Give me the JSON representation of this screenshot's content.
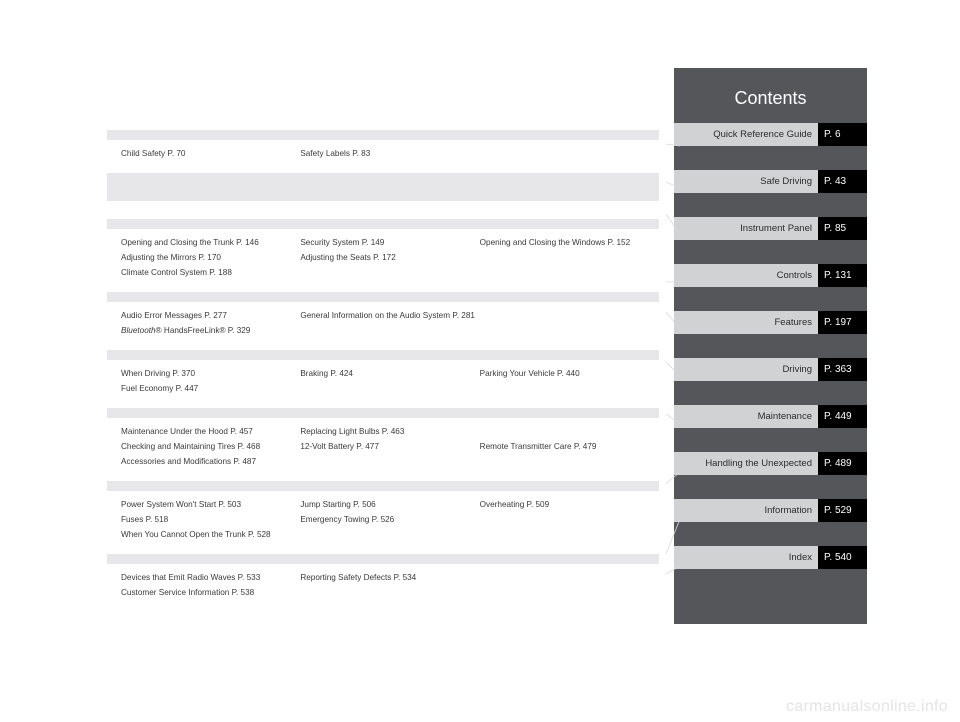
{
  "title": "Contents",
  "watermark": "carmanualsonline.info",
  "tabs": [
    {
      "label": "Quick Reference Guide",
      "page": "P. 6"
    },
    {
      "label": "Safe Driving",
      "page": "P. 43"
    },
    {
      "label": "Instrument Panel",
      "page": "P. 85"
    },
    {
      "label": "Controls",
      "page": "P. 131"
    },
    {
      "label": "Features",
      "page": "P. 197"
    },
    {
      "label": "Driving",
      "page": "P. 363"
    },
    {
      "label": "Maintenance",
      "page": "P. 449"
    },
    {
      "label": "Handling the Unexpected",
      "page": "P. 489"
    },
    {
      "label": "Information",
      "page": "P. 529"
    },
    {
      "label": "Index",
      "page": "P. 540"
    }
  ],
  "sections": [
    {
      "rows": [
        {
          "c1": "Child Safety P. 70",
          "c2": "Safety Labels P. 83",
          "c3": ""
        }
      ]
    },
    {
      "rows": [
        {
          "c1": "Opening and Closing the Trunk P. 146",
          "c2": "Security System P. 149",
          "c3": "Opening and Closing the Windows P. 152"
        },
        {
          "c1": "Adjusting the Mirrors P. 170",
          "c2": "Adjusting the Seats P. 172",
          "c3": ""
        },
        {
          "c1": "Climate Control System P. 188",
          "c2": "",
          "c3": ""
        }
      ]
    },
    {
      "rows": [
        {
          "c1": "Audio Error Messages P. 277",
          "c2": "General Information on the Audio System P. 281",
          "c3": ""
        },
        {
          "c1_html": "<span class=\"it\">Bluetooth</span>® HandsFreeLink® P. 329",
          "c2": "",
          "c3": ""
        }
      ]
    },
    {
      "rows": [
        {
          "c1": "When Driving P. 370",
          "c2": "Braking P. 424",
          "c3": "Parking Your Vehicle P. 440"
        },
        {
          "c1": "Fuel Economy P. 447",
          "c2": "",
          "c3": ""
        }
      ]
    },
    {
      "rows": [
        {
          "c1": "Maintenance Under the Hood P. 457",
          "c2": "Replacing Light Bulbs P. 463",
          "c3": ""
        },
        {
          "c1": "Checking and Maintaining Tires P. 468",
          "c2": "12-Volt Battery P. 477",
          "c3": "Remote Transmitter Care P. 479"
        },
        {
          "c1": "Accessories and Modifications P. 487",
          "c2": "",
          "c3": ""
        }
      ]
    },
    {
      "rows": [
        {
          "c1": "Power System Won't Start P. 503",
          "c2": "Jump Starting P. 506",
          "c3": "Overheating P. 509"
        },
        {
          "c1": "Fuses P. 518",
          "c2": "Emergency Towing P. 526",
          "c3": ""
        },
        {
          "c1": "When You Cannot Open the Trunk P. 528",
          "c2": "",
          "c3": ""
        }
      ]
    },
    {
      "rows": [
        {
          "c1": "Devices that Emit Radio Waves P. 533",
          "c2": "Reporting Safety Defects P. 534",
          "c3": ""
        },
        {
          "c1": "Customer Service Information P. 538",
          "c2": "",
          "c3": ""
        }
      ]
    }
  ]
}
